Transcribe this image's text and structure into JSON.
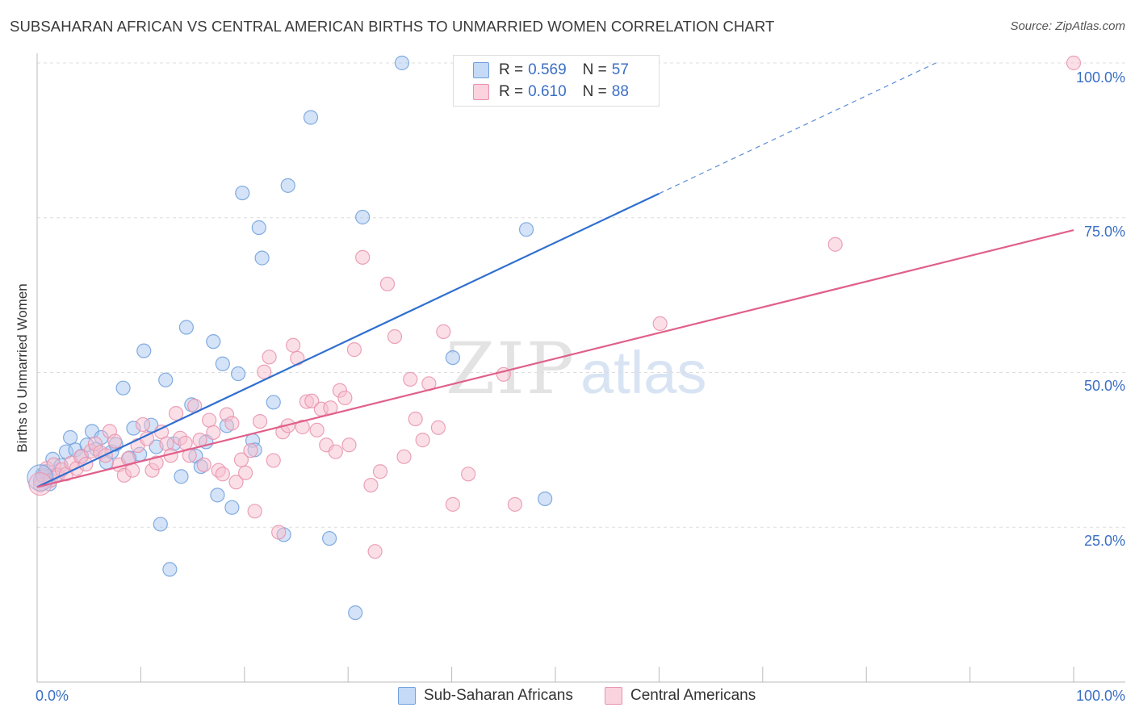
{
  "title": "SUBSAHARAN AFRICAN VS CENTRAL AMERICAN BIRTHS TO UNMARRIED WOMEN CORRELATION CHART",
  "source": "Source: ZipAtlas.com",
  "watermark": {
    "zip": "ZIP",
    "atlas": "atlas"
  },
  "legend_top": {
    "rows": [
      {
        "r_label": "R =",
        "r_value": "0.569",
        "n_label": "N =",
        "n_value": "57",
        "color": "#aac8f0"
      },
      {
        "r_label": "R =",
        "r_value": "0.610",
        "n_label": "N =",
        "n_value": "88",
        "color": "#f7bfd0"
      }
    ]
  },
  "colors": {
    "blue_fill": "#aac8f0",
    "blue_stroke": "#6f9fdc",
    "blue_line": "#2f6fd0",
    "pink_fill": "#f7bfd0",
    "pink_stroke": "#e892ad",
    "pink_line": "#e0608a",
    "grid": "#dddddd",
    "tick_text": "#3b6fc4"
  },
  "chart_data": {
    "type": "scatter",
    "title": "SUBSAHARAN AFRICAN VS CENTRAL AMERICAN BIRTHS TO UNMARRIED WOMEN CORRELATION CHART",
    "xlabel": "",
    "ylabel": "Births to Unmarried Women",
    "xlim": [
      0,
      100
    ],
    "ylim": [
      0,
      100
    ],
    "x_tick_labels": [
      "0.0%",
      "100.0%"
    ],
    "y_ticks": [
      25,
      50,
      75,
      100
    ],
    "y_tick_labels": [
      "25.0%",
      "50.0%",
      "75.0%",
      "100.0%"
    ],
    "grid": true,
    "legend_placement": "bottom",
    "series": [
      {
        "name": "Sub-Saharan Africans",
        "r": 0.569,
        "n": 57,
        "trend": {
          "x0": 0,
          "y0": 31.5,
          "x1": 100,
          "y1": 110.5,
          "solid_until_x": 60
        },
        "points": [
          [
            0.3,
            32.5
          ],
          [
            0.5,
            33.5
          ],
          [
            0.8,
            34
          ],
          [
            1.2,
            32
          ],
          [
            1.5,
            36
          ],
          [
            1.9,
            33.5
          ],
          [
            2.3,
            35
          ],
          [
            2.8,
            37.2
          ],
          [
            3.2,
            39.5
          ],
          [
            3.7,
            37.5
          ],
          [
            4.3,
            36.5
          ],
          [
            4.8,
            38.3
          ],
          [
            5.3,
            40.5
          ],
          [
            5.7,
            37.6
          ],
          [
            6.2,
            39.5
          ],
          [
            6.7,
            35.5
          ],
          [
            7.2,
            37.2
          ],
          [
            7.6,
            38.4
          ],
          [
            8.3,
            47.5
          ],
          [
            8.9,
            36.2
          ],
          [
            9.3,
            41
          ],
          [
            9.9,
            36.8
          ],
          [
            10.3,
            53.5
          ],
          [
            11.0,
            41.5
          ],
          [
            11.5,
            38
          ],
          [
            11.9,
            25.5
          ],
          [
            12.4,
            48.8
          ],
          [
            12.8,
            18.2
          ],
          [
            13.2,
            38.5
          ],
          [
            13.9,
            33.2
          ],
          [
            14.4,
            57.3
          ],
          [
            14.9,
            44.8
          ],
          [
            15.3,
            36.5
          ],
          [
            15.8,
            34.8
          ],
          [
            16.3,
            38.8
          ],
          [
            17.0,
            55.0
          ],
          [
            17.4,
            30.2
          ],
          [
            17.9,
            51.4
          ],
          [
            18.3,
            41.4
          ],
          [
            18.8,
            28.2
          ],
          [
            19.4,
            49.8
          ],
          [
            19.8,
            79.0
          ],
          [
            20.8,
            39
          ],
          [
            21.0,
            37.5
          ],
          [
            21.4,
            73.4
          ],
          [
            21.7,
            68.5
          ],
          [
            22.8,
            45.2
          ],
          [
            23.8,
            23.8
          ],
          [
            24.2,
            80.2
          ],
          [
            26.4,
            91.2
          ],
          [
            28.2,
            23.2
          ],
          [
            30.7,
            11.2
          ],
          [
            31.4,
            75.1
          ],
          [
            35.2,
            100
          ],
          [
            40.1,
            52.4
          ],
          [
            47.2,
            73.1
          ],
          [
            49.0,
            29.6
          ]
        ]
      },
      {
        "name": "Central Americans",
        "r": 0.61,
        "n": 88,
        "trend": {
          "x0": 0,
          "y0": 31.5,
          "x1": 100,
          "y1": 73.0
        },
        "points": [
          [
            0.3,
            31.8
          ],
          [
            0.6,
            33.2
          ],
          [
            0.9,
            34.5
          ],
          [
            1.3,
            32.6
          ],
          [
            1.6,
            35.1
          ],
          [
            2.0,
            33.4
          ],
          [
            2.4,
            34.3
          ],
          [
            2.8,
            33.6
          ],
          [
            3.3,
            35.4
          ],
          [
            3.8,
            34.5
          ],
          [
            4.2,
            36.4
          ],
          [
            4.7,
            35.2
          ],
          [
            5.2,
            37.3
          ],
          [
            5.6,
            38.5
          ],
          [
            6.1,
            37.1
          ],
          [
            6.6,
            36.6
          ],
          [
            7.0,
            40.5
          ],
          [
            7.5,
            38.9
          ],
          [
            7.9,
            35.1
          ],
          [
            8.4,
            33.4
          ],
          [
            8.8,
            36.1
          ],
          [
            9.2,
            34.2
          ],
          [
            9.7,
            38.2
          ],
          [
            10.2,
            41.6
          ],
          [
            10.6,
            39.3
          ],
          [
            11.1,
            34.2
          ],
          [
            11.5,
            35.4
          ],
          [
            12.0,
            40.4
          ],
          [
            12.5,
            38.5
          ],
          [
            12.9,
            36.6
          ],
          [
            13.4,
            43.4
          ],
          [
            13.8,
            39.4
          ],
          [
            14.3,
            38.6
          ],
          [
            14.7,
            36.6
          ],
          [
            15.2,
            44.6
          ],
          [
            15.7,
            39.1
          ],
          [
            16.1,
            35.1
          ],
          [
            16.6,
            42.3
          ],
          [
            17.0,
            40.3
          ],
          [
            17.5,
            34.2
          ],
          [
            17.9,
            33.6
          ],
          [
            18.3,
            43.2
          ],
          [
            18.8,
            41.8
          ],
          [
            19.2,
            32.3
          ],
          [
            19.7,
            35.9
          ],
          [
            20.1,
            33.8
          ],
          [
            20.6,
            37.4
          ],
          [
            21.0,
            27.6
          ],
          [
            21.5,
            42.1
          ],
          [
            21.9,
            50.1
          ],
          [
            22.4,
            52.5
          ],
          [
            22.8,
            35.8
          ],
          [
            23.3,
            24.2
          ],
          [
            23.7,
            40.4
          ],
          [
            24.2,
            41.4
          ],
          [
            24.7,
            54.4
          ],
          [
            25.1,
            52.3
          ],
          [
            25.6,
            41.2
          ],
          [
            26.0,
            45.3
          ],
          [
            26.5,
            45.4
          ],
          [
            27.0,
            40.7
          ],
          [
            27.4,
            44.1
          ],
          [
            27.9,
            38.3
          ],
          [
            28.3,
            44.3
          ],
          [
            28.8,
            37.2
          ],
          [
            29.2,
            47.1
          ],
          [
            29.7,
            45.9
          ],
          [
            30.1,
            38.3
          ],
          [
            30.6,
            53.7
          ],
          [
            31.4,
            68.6
          ],
          [
            32.2,
            31.8
          ],
          [
            32.6,
            21.1
          ],
          [
            33.1,
            34.0
          ],
          [
            33.8,
            64.3
          ],
          [
            34.5,
            55.8
          ],
          [
            35.4,
            36.4
          ],
          [
            36.0,
            48.9
          ],
          [
            36.5,
            42.5
          ],
          [
            37.2,
            39.1
          ],
          [
            37.8,
            48.2
          ],
          [
            38.7,
            41.1
          ],
          [
            39.2,
            56.6
          ],
          [
            40.1,
            28.7
          ],
          [
            41.6,
            33.6
          ],
          [
            45.0,
            49.7
          ],
          [
            46.1,
            28.7
          ],
          [
            60.1,
            57.9
          ],
          [
            77.0,
            70.7
          ],
          [
            100,
            100
          ]
        ]
      }
    ]
  },
  "legend_bottom": [
    {
      "label": "Sub-Saharan Africans",
      "color": "#aac8f0"
    },
    {
      "label": "Central Americans",
      "color": "#f7bfd0"
    }
  ]
}
